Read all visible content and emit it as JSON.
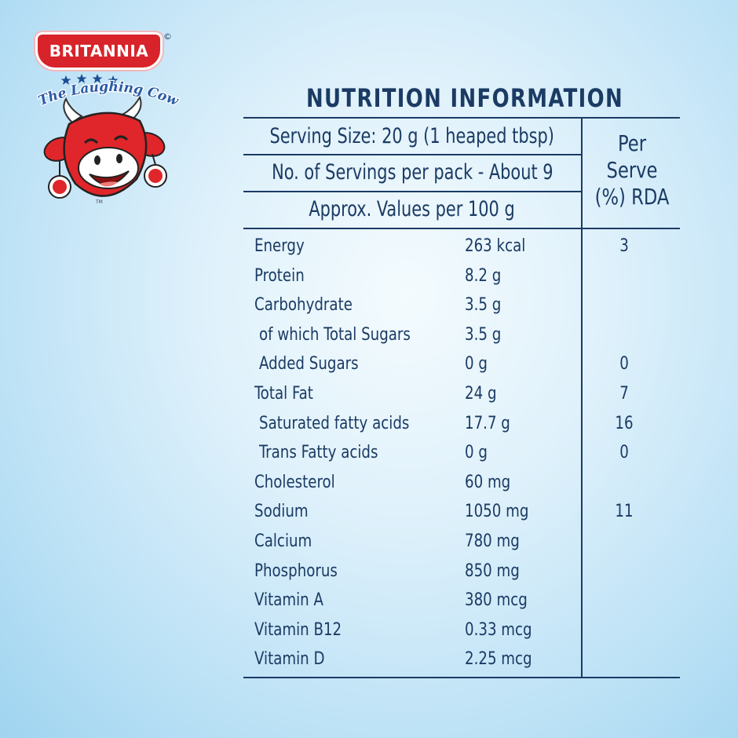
{
  "brand": {
    "name": "BRITANNIA",
    "registered": "©",
    "tagline": "The Laughing Cow",
    "trademark": "TM"
  },
  "colors": {
    "navy": "#1b3b64",
    "brand_red": "#d8232a",
    "background": "#cfeaf8"
  },
  "table": {
    "title": "NUTRITION INFORMATION",
    "serving_size": "Serving Size: 20 g (1 heaped tbsp)",
    "servings_per_pack": "No. of Servings per pack - About 9",
    "approx_values": "Approx. Values per 100 g",
    "rda_header": [
      "Per",
      "Serve",
      "(%) RDA"
    ],
    "rows": [
      {
        "name": "Energy",
        "amount": "263 kcal",
        "rda": "3"
      },
      {
        "name": "Protein",
        "amount": "8.2 g",
        "rda": ""
      },
      {
        "name": "Carbohydrate",
        "amount": "3.5 g",
        "rda": ""
      },
      {
        "name": "of which Total Sugars",
        "amount": "3.5 g",
        "rda": "",
        "indent": true
      },
      {
        "name": "Added Sugars",
        "amount": "0 g",
        "rda": "0",
        "indent": true
      },
      {
        "name": "Total Fat",
        "amount": "24 g",
        "rda": "7"
      },
      {
        "name": "Saturated fatty acids",
        "amount": "17.7 g",
        "rda": "16",
        "indent": true
      },
      {
        "name": "Trans Fatty acids",
        "amount": "0 g",
        "rda": "0",
        "indent": true
      },
      {
        "name": "Cholesterol",
        "amount": "60 mg",
        "rda": ""
      },
      {
        "name": "Sodium",
        "amount": "1050 mg",
        "rda": "11"
      },
      {
        "name": "Calcium",
        "amount": "780 mg",
        "rda": ""
      },
      {
        "name": "Phosphorus",
        "amount": "850 mg",
        "rda": ""
      },
      {
        "name": "Vitamin A",
        "amount": "380 mcg",
        "rda": ""
      },
      {
        "name": "Vitamin B12",
        "amount": "0.33 mcg",
        "rda": ""
      },
      {
        "name": "Vitamin D",
        "amount": "2.25 mcg",
        "rda": ""
      }
    ]
  }
}
